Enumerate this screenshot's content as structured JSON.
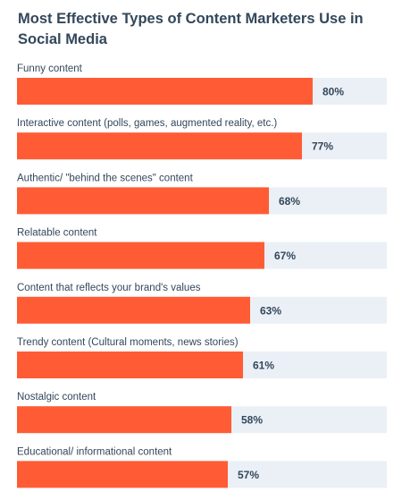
{
  "chart_data": {
    "type": "bar",
    "orientation": "horizontal",
    "title": "Most Effective Types of Content Marketers Use in Social Media",
    "categories": [
      "Funny content",
      "Interactive content (polls, games, augmented reality, etc.)",
      "Authentic/ \"behind the scenes\" content",
      "Relatable content",
      "Content that reflects your brand's values",
      "Trendy content (Cultural moments, news stories)",
      "Nostalgic content",
      "Educational/ informational content"
    ],
    "values": [
      80,
      77,
      68,
      67,
      63,
      61,
      58,
      57
    ],
    "value_labels": [
      "80%",
      "77%",
      "68%",
      "67%",
      "63%",
      "61%",
      "58%",
      "57%"
    ],
    "xlim": [
      0,
      100
    ],
    "unit": "%",
    "grid": false,
    "colors": {
      "bar": "#ff5c35",
      "track": "#eaf0f6",
      "text": "#33475b"
    }
  }
}
